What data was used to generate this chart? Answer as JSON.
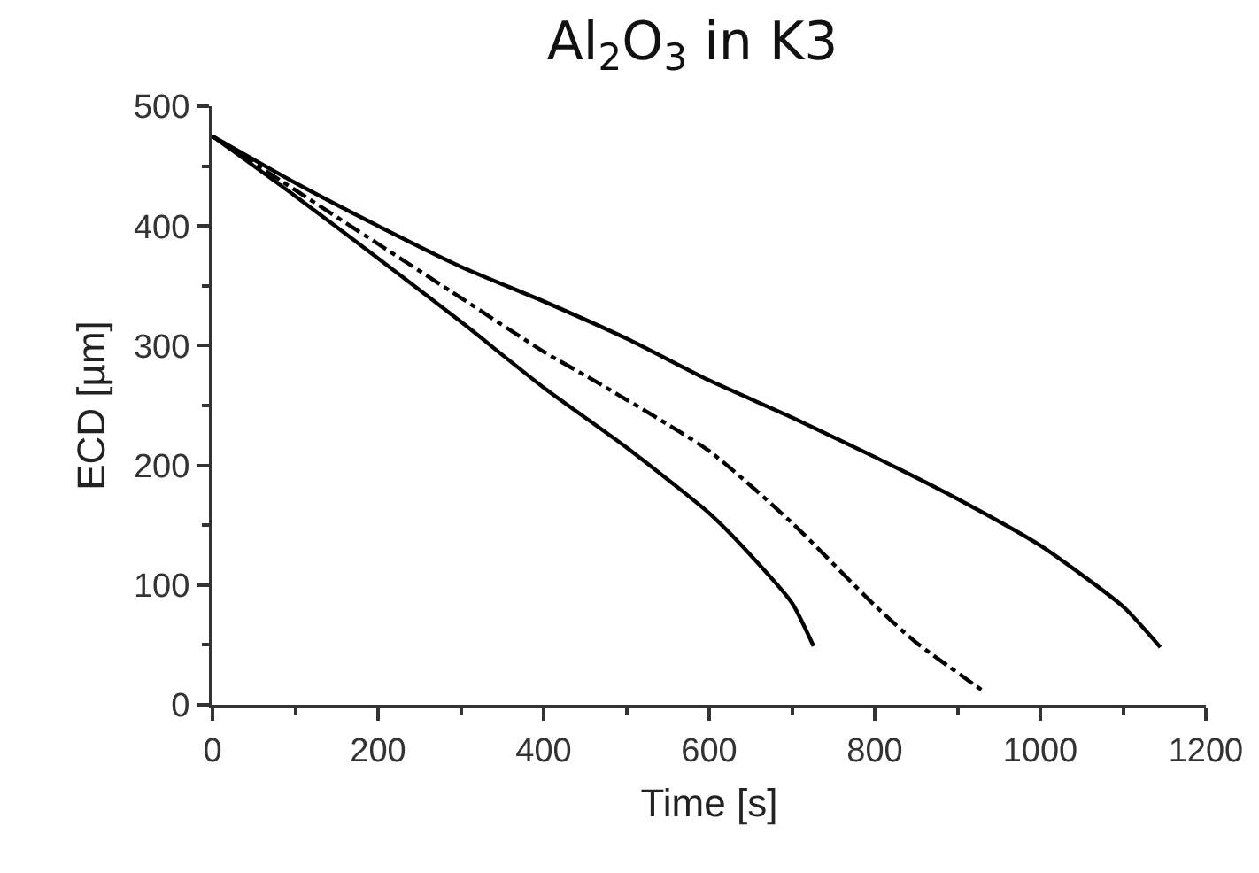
{
  "chart_data": {
    "type": "line",
    "title": "Al$_{2}$O$_{3}$ in K3",
    "xlabel": "Time [s]",
    "ylabel": "ECD [µm]",
    "xlim": [
      0,
      1200
    ],
    "xticks": [
      0,
      200,
      400,
      600,
      800,
      1000,
      1200
    ],
    "ylim": [
      0,
      500
    ],
    "yticks": [
      0,
      100,
      200,
      300,
      400,
      500
    ],
    "grid": false,
    "marker": "none",
    "series": [
      {
        "color": "#000000",
        "line_style": "solid",
        "x": [
          0,
          100,
          200,
          300,
          400,
          500,
          600,
          650,
          700,
          726
        ],
        "values": [
          475,
          425,
          373,
          320,
          265,
          215,
          160,
          125,
          85,
          49
        ]
      },
      {
        "color": "#000000",
        "line_style": "dashdot",
        "x": [
          0,
          100,
          200,
          300,
          400,
          468,
          600,
          700,
          800,
          850,
          930
        ],
        "values": [
          475,
          430,
          385,
          340,
          295,
          268,
          212,
          152,
          83,
          52,
          12
        ]
      },
      {
        "color": "#000000",
        "line_style": "solid",
        "x": [
          0,
          100,
          200,
          300,
          400,
          500,
          600,
          700,
          800,
          900,
          1000,
          1100,
          1145
        ],
        "values": [
          475,
          436,
          400,
          366,
          337,
          306,
          271,
          240,
          207,
          172,
          133,
          82,
          48
        ]
      }
    ]
  }
}
